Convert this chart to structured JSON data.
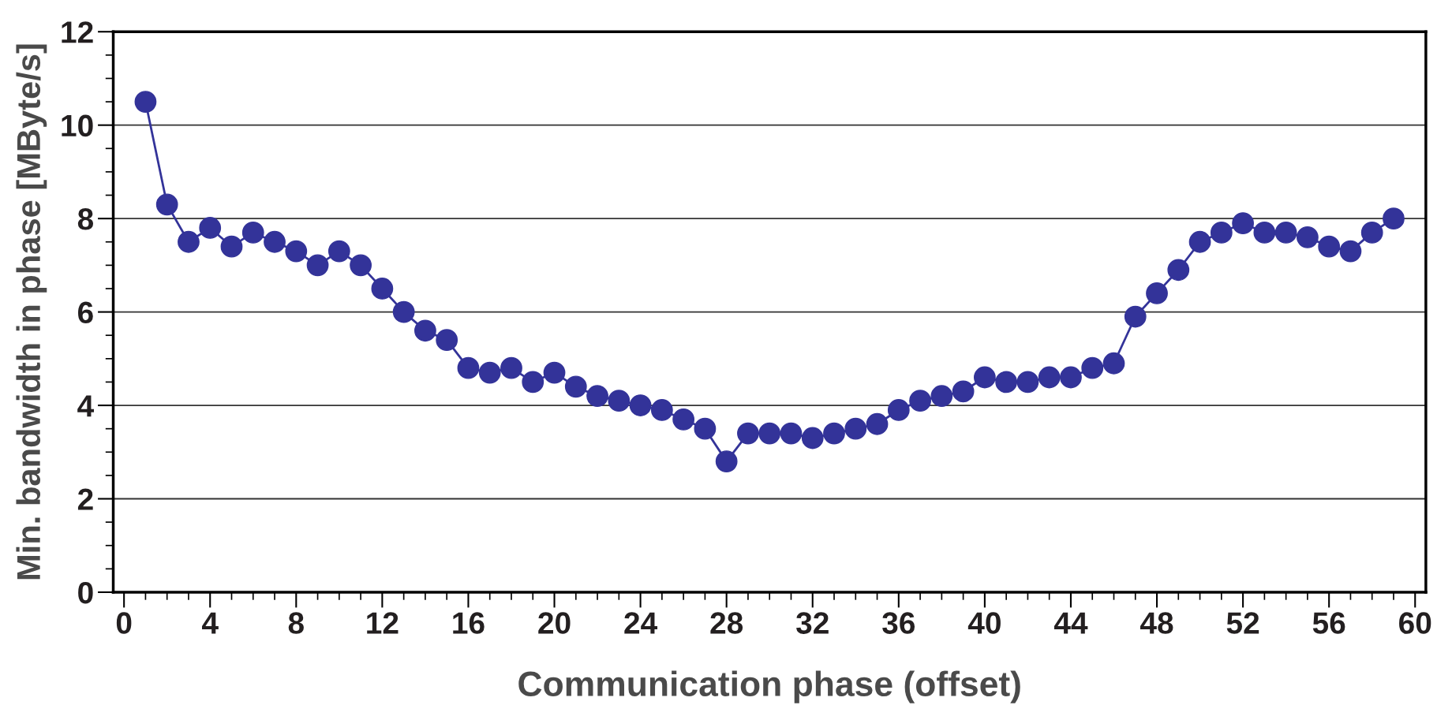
{
  "chart_data": {
    "type": "line",
    "xlabel": "Communication phase (offset)",
    "ylabel": "Min. bandwidth in phase [MByte/s]",
    "x": [
      1,
      2,
      3,
      4,
      5,
      6,
      7,
      8,
      9,
      10,
      11,
      12,
      13,
      14,
      15,
      16,
      17,
      18,
      19,
      20,
      21,
      22,
      23,
      24,
      25,
      26,
      27,
      28,
      29,
      30,
      31,
      32,
      33,
      34,
      35,
      36,
      37,
      38,
      39,
      40,
      41,
      42,
      43,
      44,
      45,
      46,
      47,
      48,
      49,
      50,
      51,
      52,
      53,
      54,
      55,
      56,
      57,
      58,
      59
    ],
    "series": [
      {
        "color": "#333399",
        "values": [
          10.5,
          8.3,
          7.5,
          7.8,
          7.4,
          7.7,
          7.5,
          7.3,
          7.0,
          7.3,
          7.0,
          6.5,
          6.0,
          5.6,
          5.4,
          4.8,
          4.7,
          4.8,
          4.5,
          4.7,
          4.4,
          4.2,
          4.1,
          4.0,
          3.9,
          3.7,
          3.5,
          2.8,
          3.4,
          3.4,
          3.4,
          3.3,
          3.4,
          3.5,
          3.6,
          3.9,
          4.1,
          4.2,
          4.3,
          4.6,
          4.5,
          4.5,
          4.6,
          4.6,
          4.8,
          4.9,
          5.9,
          6.4,
          6.9,
          7.5,
          7.7,
          7.9,
          7.7,
          7.7,
          7.6,
          7.4,
          7.3,
          7.7,
          8.0
        ]
      }
    ],
    "xlim": [
      -0.5,
      60.5
    ],
    "xticks": [
      0,
      4,
      8,
      12,
      16,
      20,
      24,
      28,
      32,
      36,
      40,
      44,
      48,
      52,
      56,
      60
    ],
    "ylim": [
      0,
      12
    ],
    "yticks": [
      0,
      2,
      4,
      6,
      8,
      10,
      12
    ],
    "grid": "y",
    "marker": "circle",
    "line_style": "solid"
  }
}
